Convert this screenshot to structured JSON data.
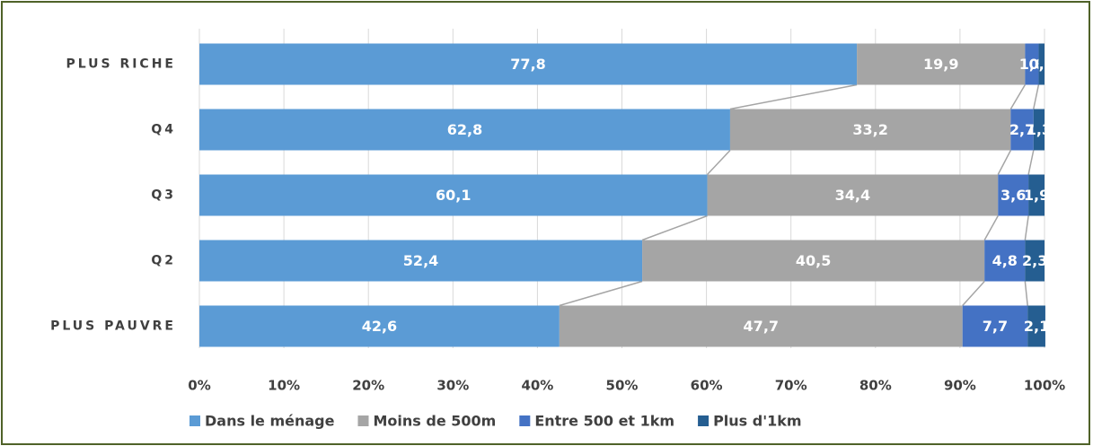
{
  "chart_data": {
    "type": "bar",
    "orientation": "horizontal",
    "stacked": true,
    "categories": [
      "PLUS RICHE",
      "Q4",
      "Q3",
      "Q2",
      "PLUS PAUVRE"
    ],
    "series": [
      {
        "name": "Dans le ménage",
        "color": "#5b9bd5",
        "values": [
          77.8,
          62.8,
          60.1,
          52.4,
          42.6
        ],
        "value_labels": [
          "77,8",
          "62,8",
          "60,1",
          "52,4",
          "42,6"
        ]
      },
      {
        "name": "Moins de 500m",
        "color": "#a5a5a5",
        "values": [
          19.9,
          33.2,
          34.4,
          40.5,
          47.7
        ],
        "value_labels": [
          "19,9",
          "33,2",
          "34,4",
          "40,5",
          "47,7"
        ]
      },
      {
        "name": "Entre 500 et 1km",
        "color": "#4472c4",
        "values": [
          1.6,
          2.7,
          3.6,
          4.8,
          7.7
        ],
        "value_labels": [
          "1,6",
          "2,7",
          "3,6",
          "4,8",
          "7,7"
        ]
      },
      {
        "name": "Plus d'1km",
        "color": "#255e91",
        "values": [
          0.7,
          1.3,
          1.9,
          2.3,
          2.1
        ],
        "value_labels": [
          "0,7",
          "1,3",
          "1,9",
          "2,3",
          "2,1"
        ]
      }
    ],
    "xlim": [
      0,
      100
    ],
    "xticks": [
      {
        "value": 0,
        "label": "0%"
      },
      {
        "value": 10,
        "label": "10%"
      },
      {
        "value": 20,
        "label": "20%"
      },
      {
        "value": 30,
        "label": "30%"
      },
      {
        "value": 40,
        "label": "40%"
      },
      {
        "value": 50,
        "label": "50%"
      },
      {
        "value": 60,
        "label": "60%"
      },
      {
        "value": 70,
        "label": "70%"
      },
      {
        "value": 80,
        "label": "80%"
      },
      {
        "value": 90,
        "label": "90%"
      },
      {
        "value": 100,
        "label": "100%"
      }
    ],
    "grid": true,
    "legend": "bottom",
    "series_lines": true
  }
}
